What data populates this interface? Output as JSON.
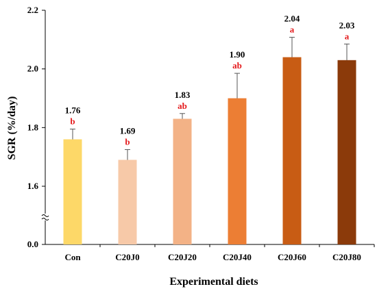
{
  "chart_data": {
    "type": "bar",
    "title": "",
    "xlabel": "Experimental diets",
    "ylabel": "SGR (%/day)",
    "categories": [
      "Con",
      "C20J0",
      "C20J20",
      "C20J40",
      "C20J60",
      "C20J80"
    ],
    "values": [
      1.76,
      1.69,
      1.83,
      1.9,
      2.04,
      2.03
    ],
    "errors": [
      0.035,
      0.035,
      0.018,
      0.085,
      0.068,
      0.055
    ],
    "value_labels": [
      "1.76",
      "1.69",
      "1.83",
      "1.90",
      "2.04",
      "2.03"
    ],
    "significance_letters": [
      "b",
      "b",
      "ab",
      "ab",
      "a",
      "a"
    ],
    "bar_colors": [
      "#fdd868",
      "#f7c9a8",
      "#f3b286",
      "#ec7e34",
      "#c85c14",
      "#8b3a0a"
    ],
    "letter_color": "#e41a1c",
    "y_break": true,
    "y_break_range": [
      0.0,
      1.5
    ],
    "ylim": [
      1.5,
      2.2
    ],
    "y_ticks": [
      "0.0",
      "1.6",
      "1.8",
      "2.0",
      "2.2"
    ],
    "grid": false,
    "legend": "none"
  }
}
